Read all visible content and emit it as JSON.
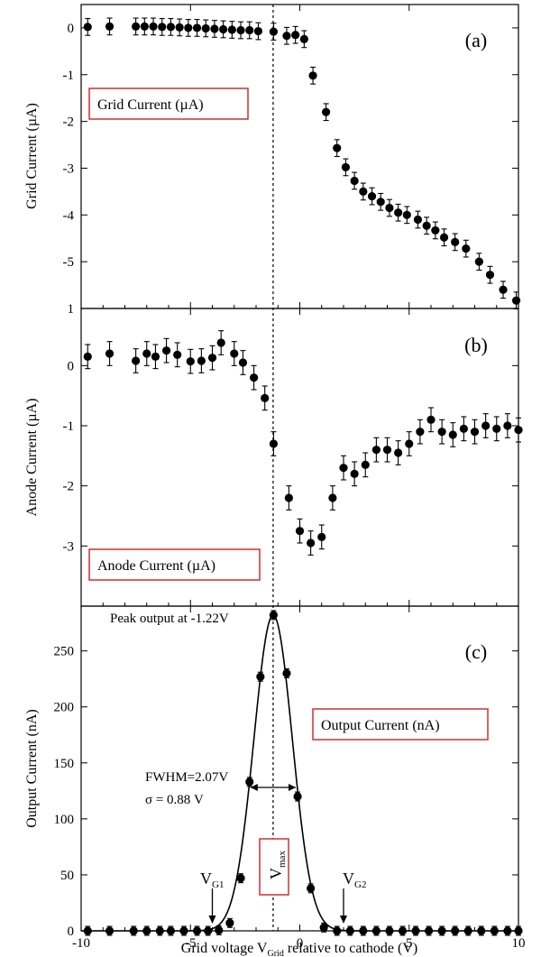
{
  "chart_data": [
    {
      "panel": "(a)",
      "type": "scatter",
      "ylabel": "Grid Current (µA)",
      "legend": "Grid Current (µA)",
      "xlim": [
        -10,
        10
      ],
      "ylim": [
        -6,
        0.5
      ],
      "yticks": [
        0,
        -1,
        -2,
        -3,
        -4,
        -5
      ],
      "extra_tick_label": "1",
      "x": [
        -9.7,
        -8.7,
        -7.5,
        -7.1,
        -6.7,
        -6.3,
        -5.9,
        -5.5,
        -5.1,
        -4.7,
        -4.3,
        -3.9,
        -3.5,
        -3.1,
        -2.7,
        -2.3,
        -1.9,
        -1.2,
        -0.6,
        -0.2,
        0.2,
        0.6,
        1.2,
        1.7,
        2.1,
        2.5,
        2.9,
        3.3,
        3.7,
        4.1,
        4.5,
        4.9,
        5.4,
        5.8,
        6.2,
        6.6,
        7.1,
        7.6,
        8.2,
        8.7,
        9.3,
        9.9
      ],
      "y": [
        0.02,
        0.03,
        0.03,
        0.03,
        0.03,
        0.02,
        0.02,
        0.01,
        0.0,
        0.0,
        -0.01,
        -0.02,
        -0.03,
        -0.04,
        -0.05,
        -0.05,
        -0.07,
        -0.08,
        -0.17,
        -0.15,
        -0.24,
        -1.02,
        -1.8,
        -2.57,
        -2.98,
        -3.27,
        -3.5,
        -3.6,
        -3.72,
        -3.85,
        -3.95,
        -4.0,
        -4.1,
        -4.23,
        -4.33,
        -4.48,
        -4.58,
        -4.72,
        -5.0,
        -5.28,
        -5.6,
        -5.83
      ],
      "err": 0.18
    },
    {
      "panel": "(b)",
      "type": "scatter",
      "ylabel": "Anode Current (µA)",
      "legend": "Anode Current (µA)",
      "xlim": [
        -10,
        10
      ],
      "ylim": [
        -4,
        0.95
      ],
      "yticks": [
        0,
        -1,
        -2,
        -3
      ],
      "x": [
        -9.7,
        -8.7,
        -7.5,
        -7.0,
        -6.6,
        -6.1,
        -5.6,
        -5.0,
        -4.5,
        -4.0,
        -3.6,
        -3.0,
        -2.6,
        -2.1,
        -1.6,
        -1.2,
        -0.5,
        0.0,
        0.5,
        1.0,
        1.5,
        2.0,
        2.5,
        3.0,
        3.5,
        4.0,
        4.5,
        5.0,
        5.5,
        6.0,
        6.5,
        7.0,
        7.5,
        8.0,
        8.5,
        9.0,
        9.5,
        10.0
      ],
      "y": [
        0.15,
        0.2,
        0.08,
        0.2,
        0.15,
        0.25,
        0.18,
        0.07,
        0.08,
        0.13,
        0.38,
        0.2,
        0.05,
        -0.2,
        -0.54,
        -1.3,
        -2.2,
        -2.75,
        -2.95,
        -2.85,
        -2.2,
        -1.7,
        -1.8,
        -1.65,
        -1.4,
        -1.4,
        -1.45,
        -1.3,
        -1.1,
        -0.9,
        -1.1,
        -1.15,
        -1.05,
        -1.1,
        -1.0,
        -1.05,
        -1.0,
        -1.07
      ],
      "err": 0.2
    },
    {
      "panel": "(c)",
      "type": "scatter",
      "ylabel": "Output Current (nA)",
      "xlabel_main": "Grid voltage V",
      "xlabel_sub": "Grid",
      "xlabel_tail": " relative to cathode (V)",
      "legend": "Output Current (nA)",
      "xlim": [
        -10,
        10
      ],
      "ylim": [
        0,
        290
      ],
      "yticks": [
        0,
        50,
        100,
        150,
        200,
        250
      ],
      "xticks": [
        -10,
        -5,
        0,
        5,
        10
      ],
      "x": [
        -9.7,
        -8.7,
        -7.6,
        -7.0,
        -6.4,
        -5.9,
        -5.3,
        -4.7,
        -4.2,
        -3.7,
        -3.2,
        -2.7,
        -2.3,
        -1.8,
        -1.2,
        -0.6,
        -0.1,
        0.5,
        1.1,
        1.7,
        2.3,
        2.9,
        3.5,
        4.1,
        4.7,
        5.3,
        5.9,
        6.5,
        7.1,
        7.7,
        8.3,
        8.9,
        9.5,
        10.0
      ],
      "y": [
        0,
        0,
        0,
        0,
        0,
        0,
        0,
        0,
        0,
        0.5,
        7,
        47,
        133,
        227,
        282,
        230,
        120,
        38,
        3,
        0,
        0,
        0,
        0,
        0,
        0,
        0,
        0,
        0,
        0,
        0,
        0,
        0,
        0,
        0
      ],
      "err": 4,
      "fit": {
        "peak_x": -1.22,
        "amplitude": 282,
        "sigma": 0.88
      }
    }
  ],
  "annotations": {
    "peak_text": "Peak output at -1.22V",
    "fwhm_text": "FWHM=2.07V",
    "sigma_text": "σ = 0.88 V",
    "vmax_main": "V",
    "vmax_sub": "max",
    "vg1_main": "V",
    "vg1_sub": "G1",
    "vg2_main": "V",
    "vg2_sub": "G2"
  }
}
